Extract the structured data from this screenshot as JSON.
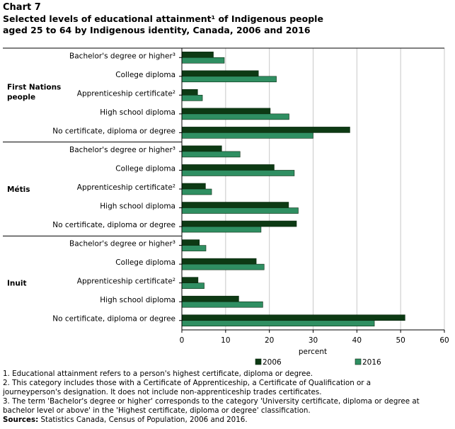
{
  "header": {
    "chart_label": "Chart 7",
    "title_line1": "Selected levels of educational attainment¹ of Indigenous  people",
    "title_line2": "aged 25 to 64 by Indigenous  identity, Canada, 2006  and 2016"
  },
  "colors": {
    "s2006": "#0d3a14",
    "s2016": "#2f8f62",
    "grid": "#c8c8c8",
    "axis": "#000000"
  },
  "chart_data": {
    "type": "bar",
    "orientation": "horizontal",
    "xlabel": "percent",
    "xlim": [
      0,
      60
    ],
    "xticks": [
      0,
      10,
      20,
      30,
      40,
      50,
      60
    ],
    "legend": {
      "position": "bottom"
    },
    "groups": [
      {
        "name": "First Nations people",
        "categories": [
          "Bachelor's degree or higher³",
          "College diploma",
          "Apprenticeship certificate²",
          "High school diploma",
          "No certificate, diploma or degree"
        ],
        "series": [
          {
            "name": "2006",
            "values": [
              7.2,
              17.5,
              3.6,
              20.2,
              38.4
            ]
          },
          {
            "name": "2016",
            "values": [
              9.7,
              21.6,
              4.7,
              24.5,
              30.0
            ]
          }
        ]
      },
      {
        "name": "Métis",
        "categories": [
          "Bachelor's degree or higher³",
          "College diploma",
          "Apprenticeship certificate²",
          "High school diploma",
          "No certificate, diploma or degree"
        ],
        "series": [
          {
            "name": "2006",
            "values": [
              9.1,
              21.1,
              5.4,
              24.4,
              26.2
            ]
          },
          {
            "name": "2016",
            "values": [
              13.3,
              25.7,
              6.8,
              26.6,
              18.1
            ]
          }
        ]
      },
      {
        "name": "Inuit",
        "categories": [
          "Bachelor's degree or higher³",
          "College diploma",
          "Apprenticeship certificate²",
          "High school diploma",
          "No certificate, diploma or degree"
        ],
        "series": [
          {
            "name": "2006",
            "values": [
              4.0,
              17.0,
              3.7,
              13.0,
              51.0
            ]
          },
          {
            "name": "2016",
            "values": [
              5.5,
              18.8,
              5.1,
              18.5,
              44.0
            ]
          }
        ]
      }
    ]
  },
  "notes": {
    "note1": "1. Educational attainment refers to a person's highest certificate, diploma or degree.",
    "note2a": "2. This category includes those with a Certificate of Apprenticeship, a Certificate of Qualification or a",
    "note2b": "journeyperson's designation. It does not include non-apprenticeship trades certificates.",
    "note3a": "3. The term 'Bachelor's degree or higher' corresponds to the category 'University certificate, diploma or degree at",
    "note3b": "bachelor level or above' in the 'Highest certificate, diploma or degree' classification.",
    "sources_label": "Sources:",
    "sources_text": " Statistics Canada, Census of Population, 2006 and 2016."
  }
}
